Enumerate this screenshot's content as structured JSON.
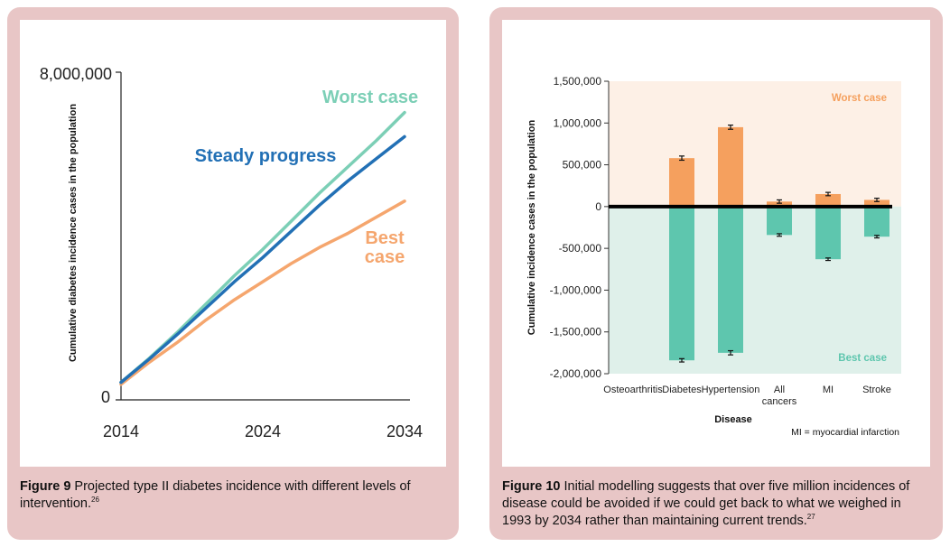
{
  "colors": {
    "worst": "#7ccfb6",
    "steady": "#2270b5",
    "best": "#f5a66e",
    "bar_worst": "#f5a05e",
    "bar_best": "#5ec6ae",
    "bg_worst": "#fdf0e6",
    "bg_best": "#dff0ea",
    "panel": "#e8c6c6"
  },
  "figure9": {
    "caption_bold": "Figure 9",
    "caption_text": " Projected type II diabetes incidence with different levels of intervention.",
    "caption_ref": "26"
  },
  "figure10": {
    "caption_bold": "Figure 10",
    "caption_text": " Initial modelling suggests that over five million incidences of disease could be avoided if we could get back to what we weighed in 1993 by 2034 rather than maintaining current trends.",
    "caption_ref": "27"
  },
  "chart_data": [
    {
      "type": "line",
      "ylabel": "Cumulative diabetes incidence cases in the population",
      "xlabel": "",
      "xlim": [
        2014,
        2034
      ],
      "ylim": [
        0,
        8000000
      ],
      "x_ticks": [
        "2014",
        "2024",
        "2034"
      ],
      "y_ticks": [
        "8,000,000",
        "0"
      ],
      "series": [
        {
          "name": "Worst case",
          "x": [
            2014,
            2016,
            2018,
            2020,
            2022,
            2024,
            2026,
            2028,
            2030,
            2032,
            2034
          ],
          "values": [
            300000,
            900000,
            1550000,
            2250000,
            2950000,
            3600000,
            4300000,
            5000000,
            5650000,
            6300000,
            7000000
          ]
        },
        {
          "name": "Steady progress",
          "x": [
            2014,
            2016,
            2018,
            2020,
            2022,
            2024,
            2026,
            2028,
            2030,
            2032,
            2034
          ],
          "values": [
            300000,
            880000,
            1500000,
            2150000,
            2800000,
            3400000,
            4050000,
            4700000,
            5300000,
            5850000,
            6400000
          ]
        },
        {
          "name": "Best case",
          "x": [
            2014,
            2016,
            2018,
            2020,
            2022,
            2024,
            2026,
            2028,
            2030,
            2032,
            2034
          ],
          "values": [
            250000,
            800000,
            1300000,
            1850000,
            2350000,
            2800000,
            3250000,
            3650000,
            4000000,
            4400000,
            4800000
          ]
        }
      ],
      "labels": {
        "worst": "Worst case",
        "steady": "Steady progress",
        "best_line1": "Best",
        "best_line2": "case"
      }
    },
    {
      "type": "bar",
      "xlabel": "Disease",
      "ylabel": "Cumulative incidence cases in the population",
      "ylim": [
        -2000000,
        1500000
      ],
      "y_ticks": [
        "1,500,000",
        "1,000,000",
        "500,000",
        "0",
        "-500,000",
        "-1,000,000",
        "-1,500,000",
        "-2,000,000"
      ],
      "y_tick_values": [
        1500000,
        1000000,
        500000,
        0,
        -500000,
        -1000000,
        -1500000,
        -2000000
      ],
      "categories": [
        "Osteoarthritis",
        "Diabetes",
        "Hypertension",
        "All cancers",
        "MI",
        "Stroke"
      ],
      "category_lines": [
        [
          "Osteoarthritis"
        ],
        [
          "Diabetes"
        ],
        [
          "Hypertension"
        ],
        [
          "All",
          "cancers"
        ],
        [
          "MI"
        ],
        [
          "Stroke"
        ]
      ],
      "series": [
        {
          "name": "Worst case",
          "values": [
            0,
            580000,
            950000,
            60000,
            150000,
            80000
          ],
          "errors": [
            0,
            25000,
            25000,
            20000,
            20000,
            20000
          ]
        },
        {
          "name": "Best case",
          "values": [
            -20000,
            -1840000,
            -1750000,
            -340000,
            -630000,
            -360000
          ],
          "errors": [
            0,
            20000,
            25000,
            15000,
            15000,
            15000
          ]
        }
      ],
      "annotation": "MI = myocardial infarction",
      "region_labels": {
        "top": "Worst case",
        "bottom": "Best case"
      }
    }
  ]
}
